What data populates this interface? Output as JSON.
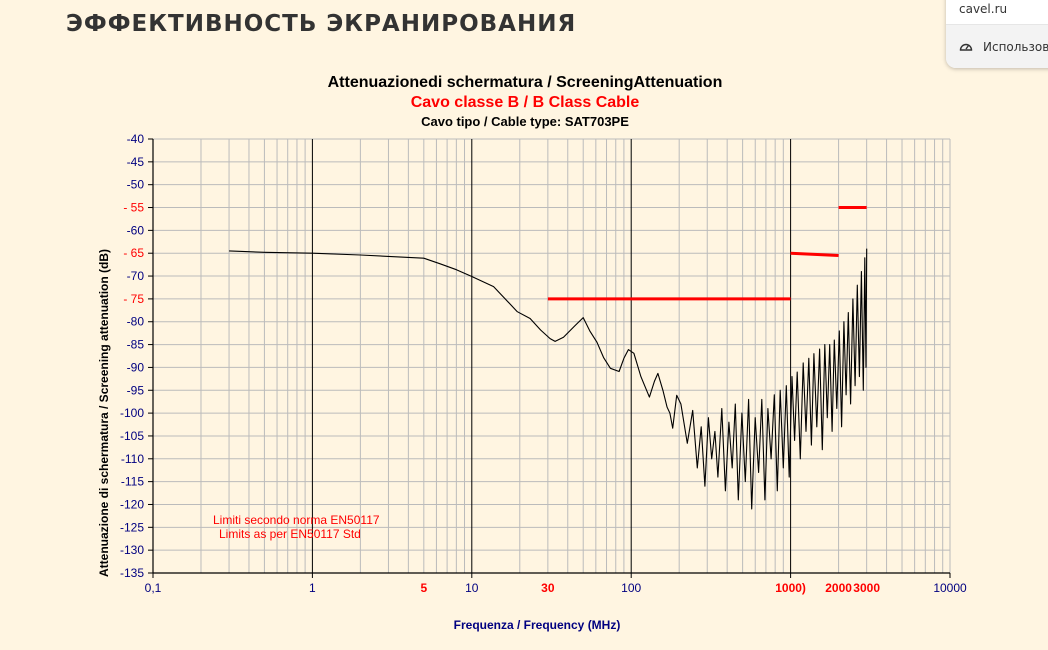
{
  "page": {
    "heading": "ЭФФЕКТИВНОСТЬ ЭКРАНИРОВАНИЯ",
    "background": "#fff5e1"
  },
  "popup": {
    "site": "cavel.ru",
    "item_label": "Использова",
    "item_icon": "gauge-icon"
  },
  "chart_data": {
    "type": "line",
    "title": "Attenuazionedi schermatura / ScreeningAttenuation",
    "subtitle": "Cavo classe B / B Class Cable",
    "subtitle2": "Cavo tipo / Cable type:  SAT703PE",
    "xlabel": "Frequenza / Frequency (MHz)",
    "ylabel": "Attenuazione di schermatura / Screening attenuation (dB)",
    "x_scale": "log",
    "xlim": [
      0.1,
      10000
    ],
    "ylim": [
      -135,
      -40
    ],
    "grid": true,
    "x_ticks": [
      {
        "value": 0.1,
        "label": "0,1",
        "color": "#000080"
      },
      {
        "value": 1,
        "label": "1",
        "color": "#000080"
      },
      {
        "value": 5,
        "label": "5",
        "color": "#ff0000"
      },
      {
        "value": 10,
        "label": "10",
        "color": "#000080"
      },
      {
        "value": 30,
        "label": "30",
        "color": "#ff0000"
      },
      {
        "value": 100,
        "label": "100",
        "color": "#000080"
      },
      {
        "value": 1000,
        "label": "1000)",
        "color": "#ff0000"
      },
      {
        "value": 2000,
        "label": "2000",
        "color": "#ff0000"
      },
      {
        "value": 3000,
        "label": "3000",
        "color": "#ff0000"
      },
      {
        "value": 10000,
        "label": "10000",
        "color": "#000080"
      }
    ],
    "y_ticks": [
      {
        "value": -40,
        "label": "-40"
      },
      {
        "value": -45,
        "label": "-45"
      },
      {
        "value": -50,
        "label": "-50"
      },
      {
        "value": -55,
        "label": "- 55",
        "color": "#ff0000"
      },
      {
        "value": -60,
        "label": "-60"
      },
      {
        "value": -65,
        "label": "- 65",
        "color": "#ff0000"
      },
      {
        "value": -70,
        "label": "-70"
      },
      {
        "value": -75,
        "label": "- 75",
        "color": "#ff0000"
      },
      {
        "value": -80,
        "label": "-80"
      },
      {
        "value": -85,
        "label": "-85"
      },
      {
        "value": -90,
        "label": "-90"
      },
      {
        "value": -95,
        "label": "-95"
      },
      {
        "value": -100,
        "label": "-100"
      },
      {
        "value": -105,
        "label": "-105"
      },
      {
        "value": -110,
        "label": "-110"
      },
      {
        "value": -115,
        "label": "-115"
      },
      {
        "value": -120,
        "label": "-120"
      },
      {
        "value": -125,
        "label": "-125"
      },
      {
        "value": -130,
        "label": "-130"
      },
      {
        "value": -135,
        "label": "-135"
      }
    ],
    "annotation": [
      "Limiti secondo  norma EN50117",
      "Limits as per EN50117  Std"
    ],
    "colors": {
      "measured": "#000000",
      "limit": "#ff0000",
      "grid": "#bbbbbb",
      "major_grid": "#000000"
    },
    "limits": [
      {
        "x": [
          30,
          1000
        ],
        "y": [
          -75,
          -75
        ]
      },
      {
        "x": [
          1000,
          2000
        ],
        "y": [
          -65,
          -65.5
        ]
      },
      {
        "x": [
          2000,
          3000
        ],
        "y": [
          -55,
          -55
        ]
      }
    ],
    "measured": [
      [
        0.3,
        -64.5
      ],
      [
        0.5,
        -64.8
      ],
      [
        1,
        -65
      ],
      [
        2,
        -65.4
      ],
      [
        3,
        -65.7
      ],
      [
        5,
        -66.1
      ],
      [
        6.3,
        -67.3
      ],
      [
        8,
        -68.6
      ],
      [
        10,
        -70.1
      ],
      [
        13.7,
        -72.3
      ],
      [
        19.3,
        -77.8
      ],
      [
        23.2,
        -79.3
      ],
      [
        27,
        -81.8
      ],
      [
        31,
        -83.7
      ],
      [
        33.3,
        -84.3
      ],
      [
        37.6,
        -83.4
      ],
      [
        44,
        -81
      ],
      [
        50,
        -79.1
      ],
      [
        55,
        -82
      ],
      [
        61,
        -84.5
      ],
      [
        67,
        -87.8
      ],
      [
        74,
        -90.2
      ],
      [
        84,
        -90.9
      ],
      [
        90,
        -88
      ],
      [
        96,
        -86.1
      ],
      [
        104,
        -86.9
      ],
      [
        115,
        -92
      ],
      [
        130,
        -96.5
      ],
      [
        140,
        -93
      ],
      [
        147,
        -91.3
      ],
      [
        158,
        -95
      ],
      [
        168,
        -98.7
      ],
      [
        175,
        -100
      ],
      [
        182,
        -103.3
      ],
      [
        193,
        -96.1
      ],
      [
        205,
        -98
      ],
      [
        225,
        -106.6
      ],
      [
        243,
        -99.4
      ],
      [
        260,
        -112
      ],
      [
        275,
        -103
      ],
      [
        290,
        -116
      ],
      [
        305,
        -101
      ],
      [
        320,
        -110
      ],
      [
        335,
        -104
      ],
      [
        350,
        -114
      ],
      [
        370,
        -99
      ],
      [
        390,
        -117
      ],
      [
        410,
        -102
      ],
      [
        430,
        -112
      ],
      [
        450,
        -98
      ],
      [
        470,
        -119
      ],
      [
        495,
        -100
      ],
      [
        520,
        -115
      ],
      [
        545,
        -97
      ],
      [
        570,
        -121
      ],
      [
        600,
        -101
      ],
      [
        630,
        -113
      ],
      [
        660,
        -97
      ],
      [
        690,
        -119
      ],
      [
        720,
        -99
      ],
      [
        755,
        -110
      ],
      [
        790,
        -96
      ],
      [
        825,
        -117
      ],
      [
        860,
        -95
      ],
      [
        900,
        -112
      ],
      [
        940,
        -94
      ],
      [
        980,
        -114
      ],
      [
        1020,
        -92
      ],
      [
        1060,
        -106
      ],
      [
        1100,
        -91
      ],
      [
        1150,
        -110
      ],
      [
        1200,
        -89
      ],
      [
        1250,
        -104
      ],
      [
        1300,
        -88
      ],
      [
        1350,
        -107
      ],
      [
        1400,
        -87
      ],
      [
        1460,
        -103
      ],
      [
        1520,
        -86
      ],
      [
        1580,
        -108
      ],
      [
        1640,
        -85
      ],
      [
        1700,
        -101
      ],
      [
        1760,
        -85
      ],
      [
        1820,
        -104
      ],
      [
        1880,
        -84
      ],
      [
        1950,
        -99
      ],
      [
        2020,
        -82
      ],
      [
        2090,
        -103
      ],
      [
        2160,
        -80
      ],
      [
        2230,
        -96
      ],
      [
        2300,
        -78
      ],
      [
        2380,
        -98
      ],
      [
        2460,
        -75
      ],
      [
        2540,
        -94
      ],
      [
        2620,
        -72
      ],
      [
        2700,
        -92
      ],
      [
        2780,
        -69
      ],
      [
        2860,
        -95
      ],
      [
        2920,
        -66
      ],
      [
        2970,
        -90
      ],
      [
        3000,
        -64
      ]
    ]
  }
}
